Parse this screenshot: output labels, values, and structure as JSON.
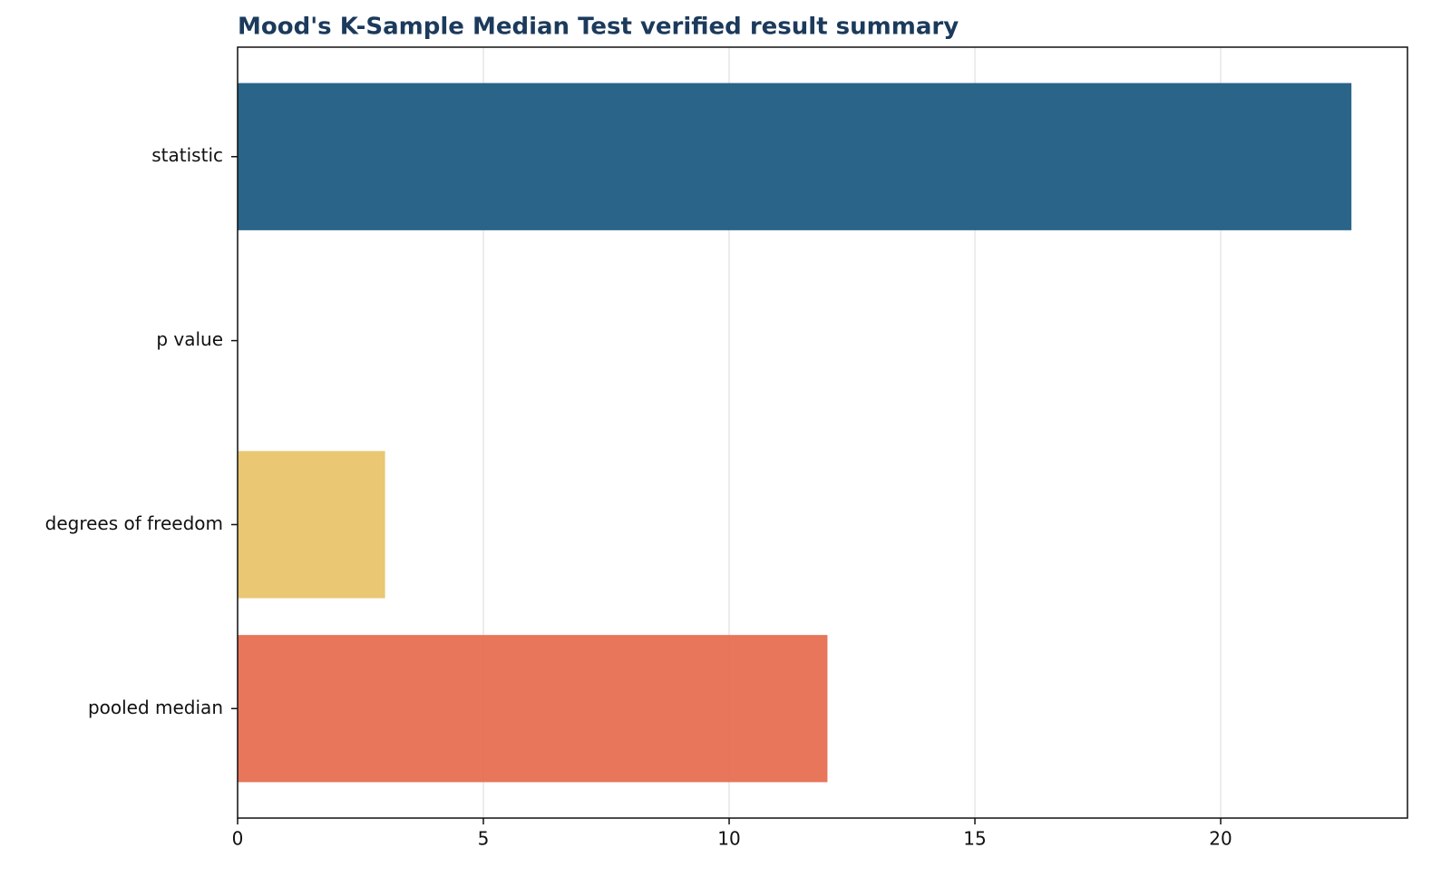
{
  "chart_data": {
    "type": "barh",
    "title": "Mood's K-Sample Median Test verified result summary",
    "categories": [
      "statistic",
      "p value",
      "degrees of freedom",
      "pooled median"
    ],
    "values": [
      22.66,
      0.0,
      3.0,
      12.0
    ],
    "colors": [
      "#1f5c82",
      "#2a9d8f",
      "#e8c46b",
      "#e66f51"
    ],
    "xlim": [
      0,
      23.8
    ],
    "xticks": [
      0,
      5,
      10,
      15,
      20
    ],
    "grid": true
  }
}
